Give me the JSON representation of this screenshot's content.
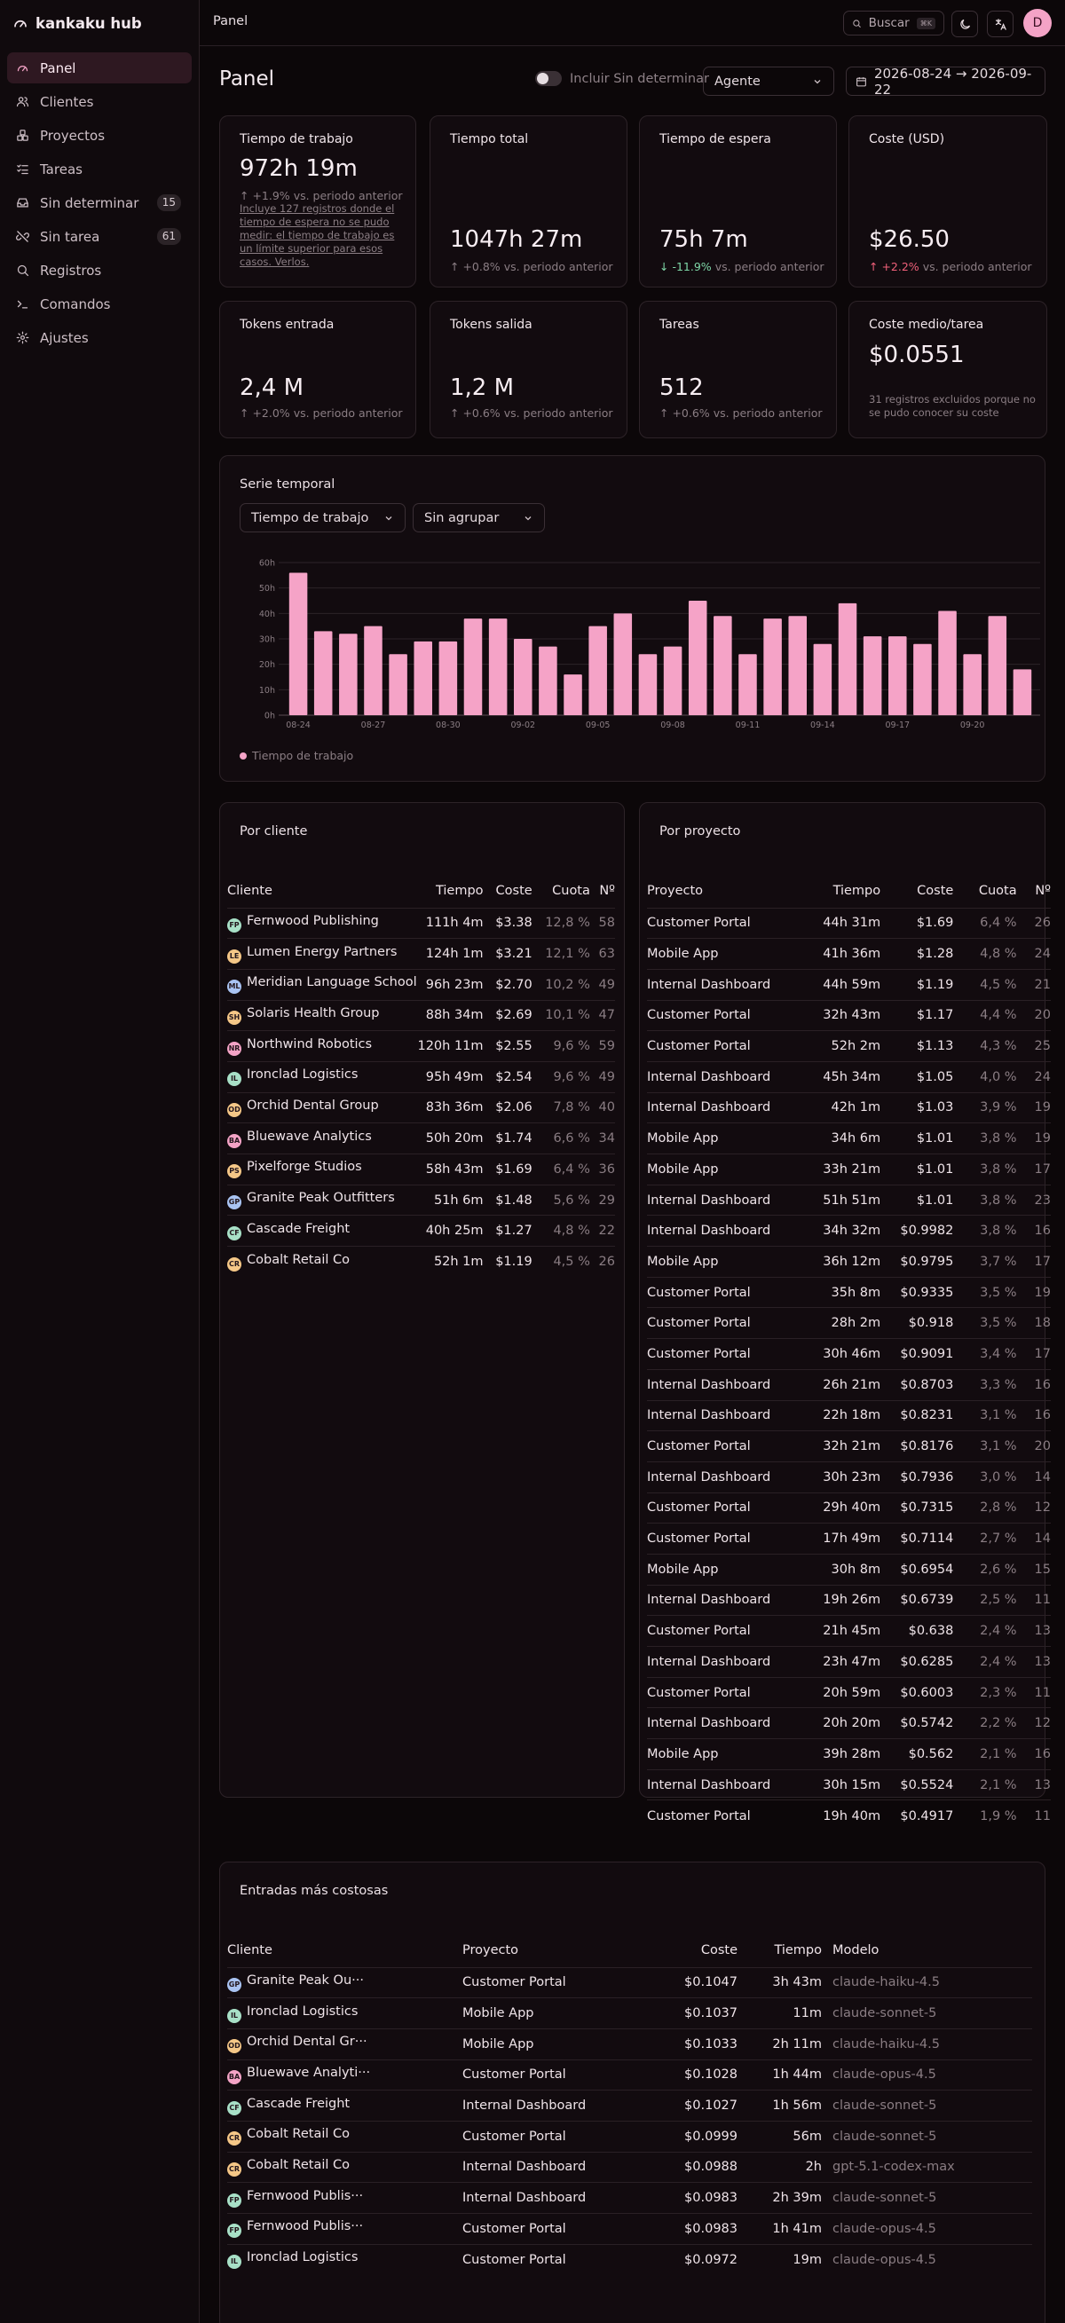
{
  "app": {
    "name": "kankaku hub"
  },
  "sidebar": {
    "items": [
      {
        "label": "Panel",
        "icon": "gauge-icon",
        "active": true,
        "badge": ""
      },
      {
        "label": "Clientes",
        "icon": "users-icon",
        "badge": ""
      },
      {
        "label": "Proyectos",
        "icon": "boxes-icon",
        "badge": ""
      },
      {
        "label": "Tareas",
        "icon": "list-checks-icon",
        "badge": ""
      },
      {
        "label": "Sin determinar",
        "icon": "inbox-icon",
        "badge": "15"
      },
      {
        "label": "Sin tarea",
        "icon": "unlink-icon",
        "badge": "61"
      },
      {
        "label": "Registros",
        "icon": "search-icon",
        "badge": ""
      },
      {
        "label": "Comandos",
        "icon": "terminal-icon",
        "badge": ""
      },
      {
        "label": "Ajustes",
        "icon": "gear-icon",
        "badge": ""
      }
    ]
  },
  "topbar": {
    "title": "Panel",
    "search_label": "Buscar",
    "search_kbd": "⌘K",
    "avatar": "D"
  },
  "header": {
    "title": "Panel",
    "toggle_label": "Incluir Sin determinar",
    "toggle_on": false,
    "agent_select": "Agente",
    "date_range": "2026-08-24 → 2026-09-22"
  },
  "stats": [
    {
      "label": "Tiempo de trabajo",
      "value": "972h 19m",
      "delta": "+1.9%",
      "delta_dir": "up",
      "delta_suffix": "vs. periodo anterior",
      "note": "Incluye 127 registros donde el tiempo de espera no se pudo medir: el tiempo de trabajo es un límite superior para esos casos. Verlos."
    },
    {
      "label": "Tiempo total",
      "value": "1047h 27m",
      "delta": "+0.8%",
      "delta_dir": "up",
      "delta_suffix": "vs. periodo anterior"
    },
    {
      "label": "Tiempo de espera",
      "value": "75h 7m",
      "delta": "-11.9%",
      "delta_dir": "down",
      "delta_suffix": "vs. periodo anterior"
    },
    {
      "label": "Coste (USD)",
      "value": "$26.50",
      "delta": "+2.2%",
      "delta_dir": "up-red",
      "delta_suffix": "vs. periodo anterior"
    },
    {
      "label": "Tokens entrada",
      "value": "2,4 M",
      "delta": "+2.0%",
      "delta_dir": "up",
      "delta_suffix": "vs. periodo anterior"
    },
    {
      "label": "Tokens salida",
      "value": "1,2 M",
      "delta": "+0.6%",
      "delta_dir": "up",
      "delta_suffix": "vs. periodo anterior"
    },
    {
      "label": "Tareas",
      "value": "512",
      "delta": "+0.6%",
      "delta_dir": "up",
      "delta_suffix": "vs. periodo anterior"
    },
    {
      "label": "Coste medio/tarea",
      "value": "$0.0551",
      "note": "31 registros excluidos porque no se pudo conocer su coste"
    }
  ],
  "timeseries": {
    "title": "Serie temporal",
    "metric_select": "Tiempo de trabajo",
    "group_select": "Sin agrupar",
    "legend": "Tiempo de trabajo",
    "color": "#f5a3c7"
  },
  "chart_data": {
    "type": "bar",
    "title": "Serie temporal",
    "series": [
      {
        "name": "Tiempo de trabajo",
        "values": [
          56,
          33,
          32,
          35,
          24,
          29,
          29,
          38,
          38,
          30,
          27,
          16,
          35,
          40,
          24,
          27,
          45,
          39,
          24,
          38,
          39,
          28,
          44,
          31,
          31,
          28,
          41,
          24,
          39,
          18
        ]
      }
    ],
    "x": [
      "08-24",
      "08-25",
      "08-26",
      "08-27",
      "08-28",
      "08-29",
      "08-30",
      "08-31",
      "09-01",
      "09-02",
      "09-03",
      "09-04",
      "09-05",
      "09-06",
      "09-07",
      "09-08",
      "09-09",
      "09-10",
      "09-11",
      "09-12",
      "09-13",
      "09-14",
      "09-15",
      "09-16",
      "09-17",
      "09-18",
      "09-19",
      "09-20",
      "09-21",
      "09-22"
    ],
    "x_ticks": [
      "08-24",
      "08-27",
      "08-30",
      "09-02",
      "09-05",
      "09-08",
      "09-11",
      "09-14",
      "09-17",
      "09-20"
    ],
    "y_ticks": [
      "0h",
      "10h",
      "20h",
      "30h",
      "40h",
      "50h",
      "60h"
    ],
    "ylim": [
      0,
      60
    ],
    "grid": true,
    "legend": "bottom-left"
  },
  "por_cliente": {
    "title": "Por cliente",
    "headers": [
      "Cliente",
      "Tiempo",
      "Coste",
      "Cuota",
      "Nº"
    ],
    "rows": [
      {
        "initials": "FP",
        "color": "#a8e0c7",
        "name": "Fernwood Publishing",
        "tiempo": "111h 4m",
        "coste": "$3.38",
        "cuota": "12,8 %",
        "n": "58"
      },
      {
        "initials": "LE",
        "color": "#f5c787",
        "name": "Lumen Energy Partners",
        "tiempo": "124h 1m",
        "coste": "$3.21",
        "cuota": "12,1 %",
        "n": "63"
      },
      {
        "initials": "ML",
        "color": "#a9c3f2",
        "name": "Meridian Language School",
        "tiempo": "96h 23m",
        "coste": "$2.70",
        "cuota": "10,2 %",
        "n": "49"
      },
      {
        "initials": "SH",
        "color": "#f5c787",
        "name": "Solaris Health Group",
        "tiempo": "88h 34m",
        "coste": "$2.69",
        "cuota": "10,1 %",
        "n": "47"
      },
      {
        "initials": "NR",
        "color": "#f4a3c6",
        "name": "Northwind Robotics",
        "tiempo": "120h 11m",
        "coste": "$2.55",
        "cuota": "9,6 %",
        "n": "59"
      },
      {
        "initials": "IL",
        "color": "#a8e0c7",
        "name": "Ironclad Logistics",
        "tiempo": "95h 49m",
        "coste": "$2.54",
        "cuota": "9,6 %",
        "n": "49"
      },
      {
        "initials": "OD",
        "color": "#f5c787",
        "name": "Orchid Dental Group",
        "tiempo": "83h 36m",
        "coste": "$2.06",
        "cuota": "7,8 %",
        "n": "40"
      },
      {
        "initials": "BA",
        "color": "#f4a3c6",
        "name": "Bluewave Analytics",
        "tiempo": "50h 20m",
        "coste": "$1.74",
        "cuota": "6,6 %",
        "n": "34"
      },
      {
        "initials": "PS",
        "color": "#f5c787",
        "name": "Pixelforge Studios",
        "tiempo": "58h 43m",
        "coste": "$1.69",
        "cuota": "6,4 %",
        "n": "36"
      },
      {
        "initials": "GP",
        "color": "#a9c3f2",
        "name": "Granite Peak Outfitters",
        "tiempo": "51h 6m",
        "coste": "$1.48",
        "cuota": "5,6 %",
        "n": "29"
      },
      {
        "initials": "CF",
        "color": "#a8e0c7",
        "name": "Cascade Freight",
        "tiempo": "40h 25m",
        "coste": "$1.27",
        "cuota": "4,8 %",
        "n": "22"
      },
      {
        "initials": "CR",
        "color": "#f5c787",
        "name": "Cobalt Retail Co",
        "tiempo": "52h 1m",
        "coste": "$1.19",
        "cuota": "4,5 %",
        "n": "26"
      }
    ]
  },
  "por_proyecto": {
    "title": "Por proyecto",
    "headers": [
      "Proyecto",
      "Tiempo",
      "Coste",
      "Cuota",
      "Nº"
    ],
    "rows": [
      {
        "name": "Customer Portal",
        "tiempo": "44h 31m",
        "coste": "$1.69",
        "cuota": "6,4 %",
        "n": "26"
      },
      {
        "name": "Mobile App",
        "tiempo": "41h 36m",
        "coste": "$1.28",
        "cuota": "4,8 %",
        "n": "24"
      },
      {
        "name": "Internal Dashboard",
        "tiempo": "44h 59m",
        "coste": "$1.19",
        "cuota": "4,5 %",
        "n": "21"
      },
      {
        "name": "Customer Portal",
        "tiempo": "32h 43m",
        "coste": "$1.17",
        "cuota": "4,4 %",
        "n": "20"
      },
      {
        "name": "Customer Portal",
        "tiempo": "52h 2m",
        "coste": "$1.13",
        "cuota": "4,3 %",
        "n": "25"
      },
      {
        "name": "Internal Dashboard",
        "tiempo": "45h 34m",
        "coste": "$1.05",
        "cuota": "4,0 %",
        "n": "24"
      },
      {
        "name": "Internal Dashboard",
        "tiempo": "42h 1m",
        "coste": "$1.03",
        "cuota": "3,9 %",
        "n": "19"
      },
      {
        "name": "Mobile App",
        "tiempo": "34h 6m",
        "coste": "$1.01",
        "cuota": "3,8 %",
        "n": "19"
      },
      {
        "name": "Mobile App",
        "tiempo": "33h 21m",
        "coste": "$1.01",
        "cuota": "3,8 %",
        "n": "17"
      },
      {
        "name": "Internal Dashboard",
        "tiempo": "51h 51m",
        "coste": "$1.01",
        "cuota": "3,8 %",
        "n": "23"
      },
      {
        "name": "Internal Dashboard",
        "tiempo": "34h 32m",
        "coste": "$0.9982",
        "cuota": "3,8 %",
        "n": "16"
      },
      {
        "name": "Mobile App",
        "tiempo": "36h 12m",
        "coste": "$0.9795",
        "cuota": "3,7 %",
        "n": "17"
      },
      {
        "name": "Customer Portal",
        "tiempo": "35h 8m",
        "coste": "$0.9335",
        "cuota": "3,5 %",
        "n": "19"
      },
      {
        "name": "Customer Portal",
        "tiempo": "28h 2m",
        "coste": "$0.918",
        "cuota": "3,5 %",
        "n": "18"
      },
      {
        "name": "Customer Portal",
        "tiempo": "30h 46m",
        "coste": "$0.9091",
        "cuota": "3,4 %",
        "n": "17"
      },
      {
        "name": "Internal Dashboard",
        "tiempo": "26h 21m",
        "coste": "$0.8703",
        "cuota": "3,3 %",
        "n": "16"
      },
      {
        "name": "Internal Dashboard",
        "tiempo": "22h 18m",
        "coste": "$0.8231",
        "cuota": "3,1 %",
        "n": "16"
      },
      {
        "name": "Customer Portal",
        "tiempo": "32h 21m",
        "coste": "$0.8176",
        "cuota": "3,1 %",
        "n": "20"
      },
      {
        "name": "Internal Dashboard",
        "tiempo": "30h 23m",
        "coste": "$0.7936",
        "cuota": "3,0 %",
        "n": "14"
      },
      {
        "name": "Customer Portal",
        "tiempo": "29h 40m",
        "coste": "$0.7315",
        "cuota": "2,8 %",
        "n": "12"
      },
      {
        "name": "Customer Portal",
        "tiempo": "17h 49m",
        "coste": "$0.7114",
        "cuota": "2,7 %",
        "n": "14"
      },
      {
        "name": "Mobile App",
        "tiempo": "30h 8m",
        "coste": "$0.6954",
        "cuota": "2,6 %",
        "n": "15"
      },
      {
        "name": "Internal Dashboard",
        "tiempo": "19h 26m",
        "coste": "$0.6739",
        "cuota": "2,5 %",
        "n": "11"
      },
      {
        "name": "Customer Portal",
        "tiempo": "21h 45m",
        "coste": "$0.638",
        "cuota": "2,4 %",
        "n": "13"
      },
      {
        "name": "Internal Dashboard",
        "tiempo": "23h 47m",
        "coste": "$0.6285",
        "cuota": "2,4 %",
        "n": "13"
      },
      {
        "name": "Customer Portal",
        "tiempo": "20h 59m",
        "coste": "$0.6003",
        "cuota": "2,3 %",
        "n": "11"
      },
      {
        "name": "Internal Dashboard",
        "tiempo": "20h 20m",
        "coste": "$0.5742",
        "cuota": "2,2 %",
        "n": "12"
      },
      {
        "name": "Mobile App",
        "tiempo": "39h 28m",
        "coste": "$0.562",
        "cuota": "2,1 %",
        "n": "16"
      },
      {
        "name": "Internal Dashboard",
        "tiempo": "30h 15m",
        "coste": "$0.5524",
        "cuota": "2,1 %",
        "n": "13"
      },
      {
        "name": "Customer Portal",
        "tiempo": "19h 40m",
        "coste": "$0.4917",
        "cuota": "1,9 %",
        "n": "11"
      }
    ]
  },
  "costosas": {
    "title": "Entradas más costosas",
    "headers": [
      "Cliente",
      "Proyecto",
      "Coste",
      "Tiempo",
      "Modelo"
    ],
    "rows": [
      {
        "initials": "GP",
        "color": "#a9c3f2",
        "cliente": "Granite Peak Ou···",
        "proyecto": "Customer Portal",
        "coste": "$0.1047",
        "tiempo": "3h 43m",
        "modelo": "claude-haiku-4.5"
      },
      {
        "initials": "IL",
        "color": "#a8e0c7",
        "cliente": "Ironclad Logistics",
        "proyecto": "Mobile App",
        "coste": "$0.1037",
        "tiempo": "11m",
        "modelo": "claude-sonnet-5"
      },
      {
        "initials": "OD",
        "color": "#f5c787",
        "cliente": "Orchid Dental Gr···",
        "proyecto": "Mobile App",
        "coste": "$0.1033",
        "tiempo": "2h 11m",
        "modelo": "claude-haiku-4.5"
      },
      {
        "initials": "BA",
        "color": "#f4a3c6",
        "cliente": "Bluewave Analyti···",
        "proyecto": "Customer Portal",
        "coste": "$0.1028",
        "tiempo": "1h 44m",
        "modelo": "claude-opus-4.5"
      },
      {
        "initials": "CF",
        "color": "#a8e0c7",
        "cliente": "Cascade Freight",
        "proyecto": "Internal Dashboard",
        "coste": "$0.1027",
        "tiempo": "1h 56m",
        "modelo": "claude-sonnet-5"
      },
      {
        "initials": "CR",
        "color": "#f5c787",
        "cliente": "Cobalt Retail Co",
        "proyecto": "Customer Portal",
        "coste": "$0.0999",
        "tiempo": "56m",
        "modelo": "claude-sonnet-5"
      },
      {
        "initials": "CR",
        "color": "#f5c787",
        "cliente": "Cobalt Retail Co",
        "proyecto": "Internal Dashboard",
        "coste": "$0.0988",
        "tiempo": "2h",
        "modelo": "gpt-5.1-codex-max"
      },
      {
        "initials": "FP",
        "color": "#a8e0c7",
        "cliente": "Fernwood Publis···",
        "proyecto": "Internal Dashboard",
        "coste": "$0.0983",
        "tiempo": "2h 39m",
        "modelo": "claude-sonnet-5"
      },
      {
        "initials": "FP",
        "color": "#a8e0c7",
        "cliente": "Fernwood Publis···",
        "proyecto": "Customer Portal",
        "coste": "$0.0983",
        "tiempo": "1h 41m",
        "modelo": "claude-opus-4.5"
      },
      {
        "initials": "IL",
        "color": "#a8e0c7",
        "cliente": "Ironclad Logistics",
        "proyecto": "Customer Portal",
        "coste": "$0.0972",
        "tiempo": "19m",
        "modelo": "claude-opus-4.5"
      }
    ]
  }
}
